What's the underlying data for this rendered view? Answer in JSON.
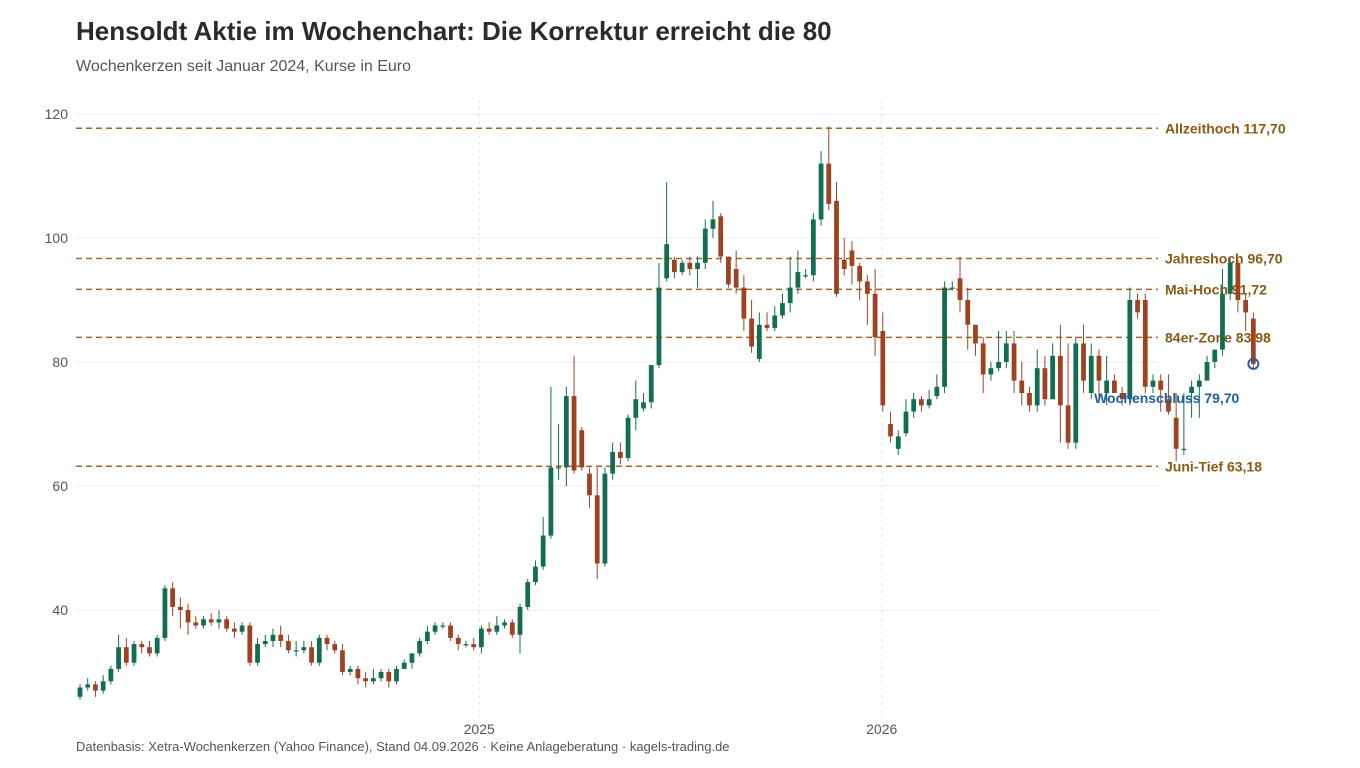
{
  "header": {
    "title": "Hensoldt Aktie im Wochenchart: Die Korrektur erreicht die 80",
    "subtitle": "Wochenkerzen seit Januar 2024, Kurse in Euro"
  },
  "footer": {
    "caption": "Datenbasis: Xetra-Wochenkerzen (Yahoo Finance), Stand 04.09.2026 · Keine Anlageberatung · kagels-trading.de"
  },
  "colors": {
    "up": "#136d52",
    "down": "#9e4322",
    "level": "#a06a2c",
    "level_text": "#8a5a14",
    "close": "#1f5fa0",
    "grid": "#ebebeb"
  },
  "chart_data": {
    "type": "candlestick",
    "title": "Hensoldt Aktie im Wochenchart: Die Korrektur erreicht die 80",
    "subtitle": "Wochenkerzen seit Januar 2024, Kurse in Euro",
    "xlabel": "",
    "ylabel": "",
    "ylim": [
      23,
      122
    ],
    "yticks": [
      40,
      60,
      80,
      100,
      120
    ],
    "ytick_labels": [
      "40",
      "60",
      "80",
      "100",
      "120"
    ],
    "xrange": [
      "2024-01-05",
      "2026-09-04"
    ],
    "xticks": [
      {
        "date": "2025-01-01",
        "label": "2025"
      },
      {
        "date": "2026-01-01",
        "label": "2026"
      }
    ],
    "start_date": "2024-01-05",
    "interval": "weekly",
    "levels": [
      {
        "value": 117.7,
        "label": "Allzeithoch 117,70"
      },
      {
        "value": 96.7,
        "label": "Jahreshoch 96,70"
      },
      {
        "value": 91.72,
        "label": "Mai-Hoch 91,72"
      },
      {
        "value": 83.98,
        "label": "84er-Zone 83,98"
      },
      {
        "value": 63.18,
        "label": "Juni-Tief 63,18"
      }
    ],
    "last_close": {
      "value": 79.7,
      "label": "Wochenschluss 79,70"
    },
    "candles": [
      [
        26,
        27.5,
        25.5,
        28
      ],
      [
        27.5,
        28,
        27,
        29
      ],
      [
        28,
        27,
        26,
        28.5
      ],
      [
        27,
        28.5,
        26.5,
        29.5
      ],
      [
        28.5,
        30.5,
        28,
        31
      ],
      [
        30.5,
        34,
        30,
        36
      ],
      [
        34,
        31.5,
        31,
        35.5
      ],
      [
        31.5,
        34.5,
        31,
        35
      ],
      [
        34.5,
        34,
        33,
        35
      ],
      [
        34,
        33,
        32.5,
        35
      ],
      [
        33,
        35.5,
        32.5,
        36
      ],
      [
        35.5,
        43.5,
        35,
        44
      ],
      [
        43.5,
        40.5,
        39,
        44.5
      ],
      [
        40.5,
        40,
        37,
        42
      ],
      [
        40,
        38,
        36,
        41
      ],
      [
        38,
        37.5,
        37,
        39
      ],
      [
        37.5,
        38.5,
        37,
        39
      ],
      [
        38.5,
        38,
        37.5,
        39.5
      ],
      [
        38,
        38.5,
        37,
        40
      ],
      [
        38.5,
        37,
        36.5,
        39
      ],
      [
        37,
        36.5,
        35.5,
        38
      ],
      [
        36.5,
        37.5,
        36,
        38
      ],
      [
        37.5,
        31.5,
        31,
        38
      ],
      [
        31.5,
        34.5,
        31,
        35.5
      ],
      [
        34.5,
        35,
        34,
        36
      ],
      [
        35,
        36,
        34,
        37
      ],
      [
        36,
        35,
        34,
        37.5
      ],
      [
        35,
        33.5,
        33,
        36
      ],
      [
        33.5,
        33.5,
        32.5,
        35
      ],
      [
        33.5,
        34,
        33,
        35
      ],
      [
        34,
        31.5,
        31,
        35
      ],
      [
        31.5,
        35.5,
        31,
        36
      ],
      [
        35.5,
        34.5,
        33.5,
        36
      ],
      [
        34.5,
        33.5,
        33,
        35
      ],
      [
        33.5,
        30,
        29.5,
        34.5
      ],
      [
        30,
        30.5,
        29.5,
        31
      ],
      [
        30.5,
        29,
        28,
        31
      ],
      [
        29,
        28.5,
        27.5,
        30
      ],
      [
        28.5,
        29,
        28,
        30.5
      ],
      [
        29,
        30,
        28.5,
        30.5
      ],
      [
        30,
        28.5,
        27.5,
        30.5
      ],
      [
        28.5,
        30.5,
        28,
        31
      ],
      [
        30.5,
        31.5,
        30.5,
        32
      ],
      [
        31.5,
        33,
        30.5,
        33
      ],
      [
        33,
        35,
        32.5,
        35.5
      ],
      [
        35,
        36.5,
        34.5,
        37.5
      ],
      [
        36.5,
        37.5,
        36,
        38
      ],
      [
        37.5,
        37.5,
        37,
        38
      ],
      [
        37.5,
        35.5,
        35,
        38
      ],
      [
        35.5,
        34.5,
        33.5,
        36
      ],
      [
        34.5,
        34.5,
        34,
        35
      ],
      [
        34.5,
        34,
        33.5,
        35.5
      ],
      [
        34,
        37,
        33,
        37.5
      ],
      [
        37,
        36.5,
        36,
        38
      ],
      [
        36.5,
        37.5,
        36,
        39
      ],
      [
        37.5,
        38,
        37,
        38.5
      ],
      [
        38,
        36,
        35.5,
        38.5
      ],
      [
        36,
        40.5,
        33,
        41
      ],
      [
        40.5,
        44.5,
        40,
        45
      ],
      [
        44.5,
        47,
        44,
        48
      ],
      [
        47,
        52,
        46.5,
        55
      ],
      [
        52,
        63,
        51.5,
        76
      ],
      [
        63,
        63,
        61,
        70
      ],
      [
        63,
        74.5,
        60,
        76
      ],
      [
        74.5,
        62.5,
        62,
        81
      ],
      [
        69,
        63,
        62.5,
        69.5
      ],
      [
        62,
        58.5,
        56.5,
        63
      ],
      [
        58.5,
        47.5,
        45,
        63
      ],
      [
        47.5,
        62,
        47,
        63
      ],
      [
        62,
        65.5,
        61,
        67
      ],
      [
        65.5,
        64.5,
        63.5,
        67
      ],
      [
        64.5,
        71,
        64,
        71.5
      ],
      [
        71,
        74,
        69,
        77
      ],
      [
        72.5,
        73.5,
        72,
        75
      ],
      [
        73.5,
        79.5,
        72.5,
        79.5
      ],
      [
        79.5,
        92,
        79,
        96
      ],
      [
        93.5,
        99,
        93,
        109
      ],
      [
        96.5,
        94.5,
        93.5,
        97
      ],
      [
        94.5,
        96,
        94,
        96.5
      ],
      [
        96,
        95,
        94,
        97
      ],
      [
        95,
        96,
        92,
        97
      ],
      [
        96,
        101.5,
        95,
        103
      ],
      [
        101.5,
        103,
        100,
        106
      ],
      [
        103.5,
        97,
        96,
        104
      ],
      [
        97,
        92.5,
        92,
        97
      ],
      [
        95,
        92,
        91,
        98
      ],
      [
        92,
        87,
        85,
        94
      ],
      [
        87,
        82.5,
        81.5,
        90
      ],
      [
        80.5,
        86,
        80,
        88
      ],
      [
        86,
        85.5,
        85,
        88
      ],
      [
        85.5,
        87.5,
        85,
        89
      ],
      [
        87.5,
        89.5,
        87,
        91
      ],
      [
        89.5,
        92,
        88,
        97
      ],
      [
        92,
        94.5,
        91,
        98
      ],
      [
        94,
        94,
        93.5,
        95
      ],
      [
        94,
        103,
        93,
        104
      ],
      [
        103,
        112,
        102,
        114
      ],
      [
        112,
        105.5,
        104.5,
        118
      ],
      [
        106,
        91,
        90.5,
        109
      ],
      [
        96.5,
        95,
        94,
        100
      ],
      [
        98,
        95.5,
        92.5,
        99.5
      ],
      [
        95.5,
        93,
        90,
        96
      ],
      [
        93,
        91,
        86,
        94
      ],
      [
        91,
        84,
        81,
        95
      ],
      [
        85,
        73,
        72,
        88
      ],
      [
        70,
        68,
        67,
        72
      ],
      [
        66,
        68,
        65,
        69
      ],
      [
        68.5,
        72,
        68,
        74
      ],
      [
        72,
        74,
        71,
        75
      ],
      [
        74,
        73,
        72,
        74.5
      ],
      [
        73,
        74,
        72.5,
        75.5
      ],
      [
        74.5,
        76,
        74,
        78
      ],
      [
        76,
        92,
        75,
        93
      ],
      [
        92,
        92,
        91.5,
        93
      ],
      [
        93.5,
        90,
        88,
        97
      ],
      [
        90,
        86,
        82,
        92
      ],
      [
        86,
        83,
        81,
        86
      ],
      [
        83,
        78,
        75,
        84
      ],
      [
        78,
        79,
        77,
        80
      ],
      [
        79,
        80,
        78.5,
        85
      ],
      [
        80,
        83,
        79,
        85
      ],
      [
        83,
        77,
        75,
        85
      ],
      [
        77,
        75,
        73,
        80
      ],
      [
        75,
        73,
        72,
        76
      ],
      [
        73,
        79,
        72,
        82
      ],
      [
        79,
        74,
        73,
        81
      ],
      [
        74,
        81,
        74,
        83
      ],
      [
        81,
        73,
        67,
        86
      ],
      [
        73,
        67,
        66,
        83
      ],
      [
        67,
        83,
        66,
        84
      ],
      [
        83,
        77,
        75,
        86
      ],
      [
        75,
        81,
        74,
        83
      ],
      [
        81,
        77,
        74,
        82
      ],
      [
        75,
        77,
        73,
        81
      ],
      [
        77,
        75,
        75,
        78
      ],
      [
        75,
        74,
        73,
        76
      ],
      [
        74,
        90,
        73,
        92
      ],
      [
        90,
        88,
        87,
        91
      ],
      [
        90,
        76,
        75,
        91
      ],
      [
        76,
        77,
        75,
        78
      ],
      [
        77,
        75.5,
        72,
        78
      ],
      [
        74,
        72,
        71.5,
        78
      ],
      [
        71,
        66,
        64,
        75
      ],
      [
        66,
        66,
        65,
        75
      ],
      [
        75,
        76,
        71,
        77
      ],
      [
        76,
        77,
        71,
        78
      ],
      [
        77,
        80,
        77,
        81
      ],
      [
        80,
        82,
        79,
        82
      ],
      [
        82,
        91,
        81,
        95
      ],
      [
        91,
        96,
        90,
        96.7
      ],
      [
        96,
        90,
        88,
        96.5
      ],
      [
        90,
        88,
        85,
        91
      ],
      [
        87,
        79.7,
        79,
        88
      ]
    ]
  }
}
